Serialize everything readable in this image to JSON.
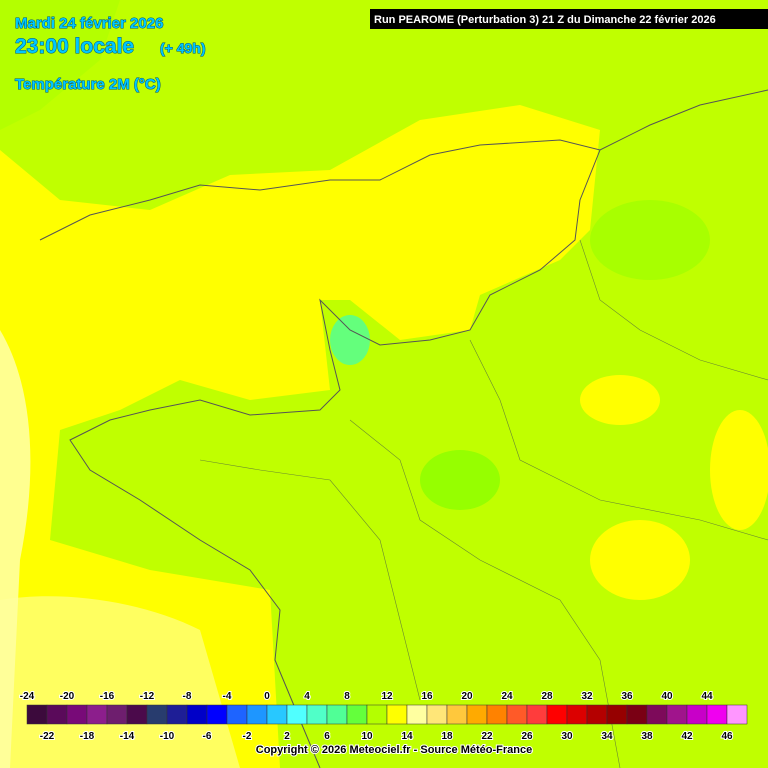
{
  "header": {
    "date": "Mardi 24 février 2026",
    "time": "23:00 locale",
    "lead": "(+ 49h)",
    "parameter": "Température 2M (°C)",
    "run": "Run PEAROME (Perturbation 3) 21 Z du Dimanche 22 février 2026"
  },
  "legend": [
    {
      "value": -24,
      "color": "#3c0a3c"
    },
    {
      "value": -22,
      "color": "#5a0a5a"
    },
    {
      "value": -20,
      "color": "#780a78"
    },
    {
      "value": -18,
      "color": "#8c1e8c"
    },
    {
      "value": -16,
      "color": "#6e1e6e"
    },
    {
      "value": -14,
      "color": "#4b0a4b"
    },
    {
      "value": -12,
      "color": "#283c6e"
    },
    {
      "value": -10,
      "color": "#1e1e96"
    },
    {
      "value": -8,
      "color": "#0000c8"
    },
    {
      "value": -6,
      "color": "#0000ff"
    },
    {
      "value": -4,
      "color": "#1e64ff"
    },
    {
      "value": -2,
      "color": "#1e96ff"
    },
    {
      "value": 0,
      "color": "#28c8ff"
    },
    {
      "value": 2,
      "color": "#50ffff"
    },
    {
      "value": 4,
      "color": "#50ffc8"
    },
    {
      "value": 6,
      "color": "#50ff96"
    },
    {
      "value": 8,
      "color": "#64ff3c"
    },
    {
      "value": 10,
      "color": "#b4ff00"
    },
    {
      "value": 12,
      "color": "#ffff00"
    },
    {
      "value": 14,
      "color": "#ffffa0"
    },
    {
      "value": 16,
      "color": "#ffe678"
    },
    {
      "value": 18,
      "color": "#ffc83c"
    },
    {
      "value": 20,
      "color": "#ffaa00"
    },
    {
      "value": 22,
      "color": "#ff8200"
    },
    {
      "value": 24,
      "color": "#ff5a28"
    },
    {
      "value": 26,
      "color": "#ff3c3c"
    },
    {
      "value": 28,
      "color": "#ff0000"
    },
    {
      "value": 30,
      "color": "#dc0000"
    },
    {
      "value": 32,
      "color": "#b40000"
    },
    {
      "value": 34,
      "color": "#960000"
    },
    {
      "value": 36,
      "color": "#7a0014"
    },
    {
      "value": 38,
      "color": "#7d0a5a"
    },
    {
      "value": 40,
      "color": "#a0148c"
    },
    {
      "value": 42,
      "color": "#c800c8"
    },
    {
      "value": 44,
      "color": "#f000f0"
    },
    {
      "value": 46,
      "color": "#ff96ff"
    }
  ],
  "copyright": "Copyright © 2026 Meteociel.fr - Source Météo-France"
}
